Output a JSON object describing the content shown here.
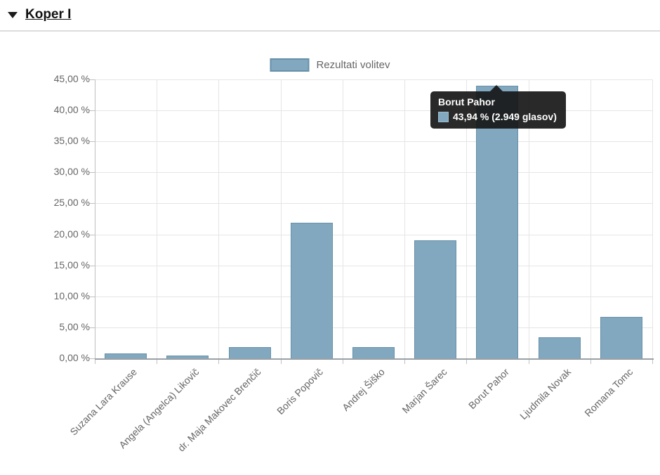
{
  "header": {
    "title": "Koper I",
    "collapse_icon": "triangle-down"
  },
  "legend": {
    "label": "Rezultati volitev"
  },
  "tooltip": {
    "title": "Borut Pahor",
    "value_text": "43,94 % (2.949 glasov)"
  },
  "colors": {
    "bar_fill": "#81a8bf",
    "bar_border": "#6790a9",
    "grid_line": "#e5e5e5",
    "axis_line": "#c0c0c0",
    "label_color": "#666666",
    "tooltip_bg": "#171717",
    "header_text": "#111111"
  },
  "chart_data": {
    "type": "bar",
    "title": "",
    "series_name": "Rezultati volitev",
    "categories": [
      "Suzana Lara Krause",
      "Angela (Angelca) Likovič",
      "dr. Maja Makovec Brenčič",
      "Boris Popovič",
      "Andrej Šiško",
      "Marjan Šarec",
      "Borut Pahor",
      "Ljudmila Novak",
      "Romana Tomc"
    ],
    "values": [
      0.8,
      0.5,
      1.8,
      21.9,
      1.8,
      19.0,
      43.94,
      3.4,
      6.7
    ],
    "highlighted_category": "Borut Pahor",
    "highlighted_value_label": "43,94 % (2.949 glasov)",
    "xlabel": "",
    "ylabel": "",
    "ylim": [
      0,
      45
    ],
    "y_ticks": [
      "0,00 %",
      "5,00 %",
      "10,00 %",
      "15,00 %",
      "20,00 %",
      "25,00 %",
      "30,00 %",
      "35,00 %",
      "40,00 %",
      "45,00 %"
    ],
    "grid": true,
    "legend_position": "top",
    "x_label_rotation": -45
  }
}
